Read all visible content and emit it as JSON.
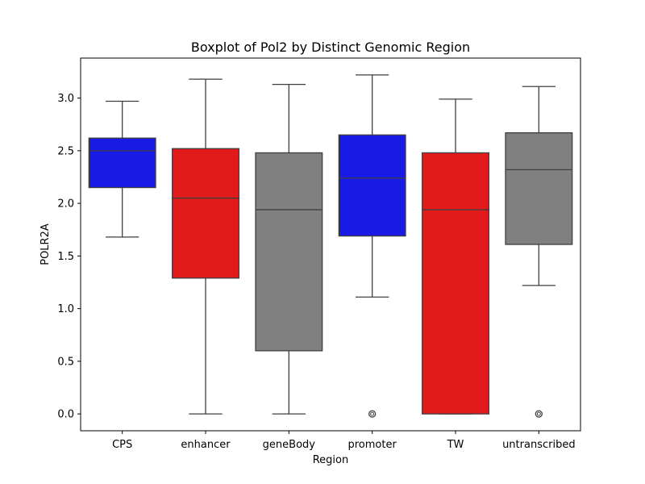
{
  "chart_data": {
    "type": "box",
    "title": "Boxplot of Pol2 by Distinct Genomic Region",
    "xlabel": "Region",
    "ylabel": "POLR2A",
    "ylim": [
      -0.16,
      3.38
    ],
    "yticks": [
      "0.0",
      "0.5",
      "1.0",
      "1.5",
      "2.0",
      "2.5",
      "3.0"
    ],
    "grid": false,
    "categories": [
      "CPS",
      "enhancer",
      "geneBody",
      "promoter",
      "TW",
      "untranscribed"
    ],
    "boxes": [
      {
        "category": "CPS",
        "color": "#1a1ae6",
        "whisker_low": 1.68,
        "q1": 2.15,
        "median": 2.5,
        "q3": 2.62,
        "whisker_high": 2.97,
        "outliers": []
      },
      {
        "category": "enhancer",
        "color": "#e31a1c",
        "whisker_low": 0.0,
        "q1": 1.29,
        "median": 2.05,
        "q3": 2.52,
        "whisker_high": 3.18,
        "outliers": []
      },
      {
        "category": "geneBody",
        "color": "#808080",
        "whisker_low": 0.0,
        "q1": 0.6,
        "median": 1.94,
        "q3": 2.48,
        "whisker_high": 3.13,
        "outliers": []
      },
      {
        "category": "promoter",
        "color": "#1a1ae6",
        "whisker_low": 1.11,
        "q1": 1.69,
        "median": 2.24,
        "q3": 2.65,
        "whisker_high": 3.22,
        "outliers": [
          0.0
        ]
      },
      {
        "category": "TW",
        "color": "#e31a1c",
        "whisker_low": 0.0,
        "q1": 0.0,
        "median": 1.94,
        "q3": 2.48,
        "whisker_high": 2.99,
        "outliers": []
      },
      {
        "category": "untranscribed",
        "color": "#808080",
        "whisker_low": 1.22,
        "q1": 1.61,
        "median": 2.32,
        "q3": 2.67,
        "whisker_high": 3.11,
        "outliers": [
          0.0
        ]
      }
    ]
  }
}
